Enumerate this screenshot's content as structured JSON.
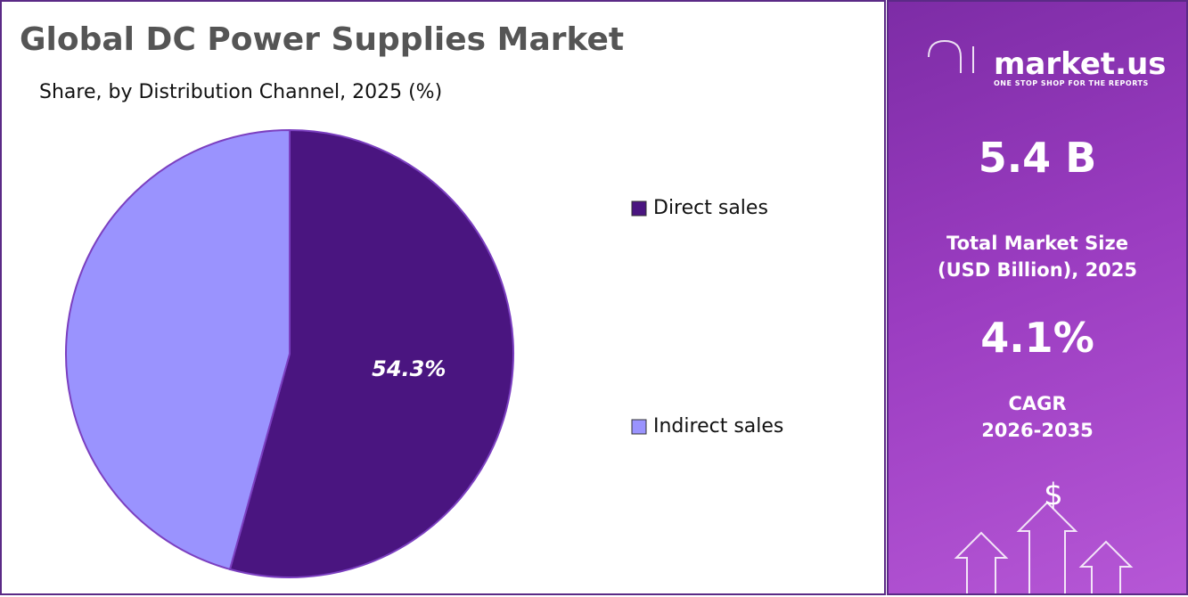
{
  "chart_data": {
    "type": "pie",
    "title": "Global DC Power Supplies Market",
    "subtitle": "Share, by Distribution Channel, 2025 (%)",
    "categories": [
      "Direct sales",
      "Indirect sales"
    ],
    "values": [
      54.3,
      45.7
    ],
    "value_labels": [
      "54.3%",
      null
    ],
    "colors": [
      "#4a1580",
      "#9a93fe"
    ]
  },
  "panel": {
    "brand": "market.us",
    "tagline": "ONE STOP SHOP FOR THE REPORTS",
    "market_size": "5.4 B",
    "market_size_label": [
      "Total Market Size",
      "(USD Billion), 2025"
    ],
    "cagr": "4.1%",
    "cagr_label": [
      "CAGR",
      "2026-2035"
    ]
  }
}
